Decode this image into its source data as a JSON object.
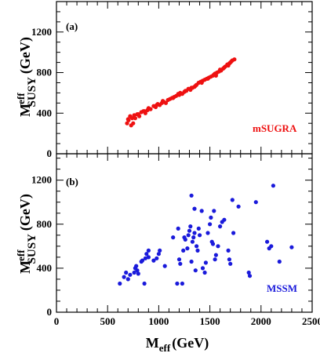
{
  "chart_data": {
    "type": "scatter",
    "xlabel": {
      "main": "M",
      "sub": "eff",
      "unit": "(GeV)"
    },
    "ylabel": {
      "main": "M",
      "sup": "eff",
      "sub": "SUSY",
      "unit": "(GeV)"
    },
    "xlim": [
      0,
      2500
    ],
    "x_ticks": [
      0,
      500,
      1000,
      1500,
      2000,
      2500
    ],
    "x_minor_step": 100,
    "grid": false,
    "panels": [
      {
        "label": "(a)",
        "series_name": "mSUGRA",
        "color": "#ee1111",
        "ylim": [
          0,
          1500
        ],
        "y_ticks": [
          0,
          400,
          800,
          1200
        ],
        "y_minor_step": 100,
        "points": [
          [
            690,
            300
          ],
          [
            700,
            340
          ],
          [
            705,
            330
          ],
          [
            720,
            370
          ],
          [
            730,
            280
          ],
          [
            740,
            350
          ],
          [
            750,
            300
          ],
          [
            760,
            380
          ],
          [
            770,
            350
          ],
          [
            790,
            390
          ],
          [
            810,
            370
          ],
          [
            830,
            410
          ],
          [
            850,
            420
          ],
          [
            870,
            400
          ],
          [
            890,
            430
          ],
          [
            900,
            450
          ],
          [
            920,
            440
          ],
          [
            950,
            470
          ],
          [
            970,
            460
          ],
          [
            990,
            490
          ],
          [
            1010,
            480
          ],
          [
            1030,
            500
          ],
          [
            1050,
            510
          ],
          [
            1070,
            500
          ],
          [
            1090,
            530
          ],
          [
            1110,
            540
          ],
          [
            1130,
            550
          ],
          [
            1150,
            560
          ],
          [
            1170,
            570
          ],
          [
            1190,
            590
          ],
          [
            1210,
            600
          ],
          [
            1230,
            590
          ],
          [
            1250,
            610
          ],
          [
            1270,
            620
          ],
          [
            1290,
            640
          ],
          [
            1310,
            630
          ],
          [
            1330,
            650
          ],
          [
            1350,
            660
          ],
          [
            1370,
            680
          ],
          [
            1390,
            700
          ],
          [
            1410,
            710
          ],
          [
            1430,
            720
          ],
          [
            1450,
            730
          ],
          [
            1470,
            740
          ],
          [
            1490,
            750
          ],
          [
            1510,
            760
          ],
          [
            1530,
            770
          ],
          [
            1550,
            790
          ],
          [
            1570,
            800
          ],
          [
            1590,
            810
          ],
          [
            1610,
            820
          ],
          [
            1630,
            840
          ],
          [
            1650,
            860
          ],
          [
            1670,
            880
          ],
          [
            1690,
            890
          ],
          [
            1700,
            900
          ],
          [
            1720,
            920
          ],
          [
            1740,
            930
          ],
          [
            1600,
            830
          ],
          [
            1560,
            770
          ],
          [
            1640,
            850
          ],
          [
            1680,
            870
          ],
          [
            1710,
            910
          ],
          [
            1360,
            670
          ],
          [
            1420,
            700
          ],
          [
            1480,
            740
          ],
          [
            1200,
            580
          ],
          [
            1140,
            550
          ],
          [
            980,
            480
          ],
          [
            860,
            420
          ],
          [
            800,
            390
          ],
          [
            1040,
            520
          ],
          [
            1260,
            620
          ],
          [
            1320,
            650
          ],
          [
            1540,
            780
          ]
        ]
      },
      {
        "label": "(b)",
        "series_name": "MSSM",
        "color": "#1a1adb",
        "ylim": [
          0,
          1440
        ],
        "y_ticks": [
          0,
          400,
          800,
          1200
        ],
        "y_minor_step": 100,
        "points": [
          [
            620,
            260
          ],
          [
            660,
            320
          ],
          [
            680,
            360
          ],
          [
            700,
            300
          ],
          [
            720,
            340
          ],
          [
            760,
            360
          ],
          [
            770,
            400
          ],
          [
            780,
            420
          ],
          [
            790,
            380
          ],
          [
            800,
            350
          ],
          [
            830,
            460
          ],
          [
            840,
            470
          ],
          [
            860,
            260
          ],
          [
            870,
            490
          ],
          [
            880,
            530
          ],
          [
            900,
            560
          ],
          [
            900,
            500
          ],
          [
            950,
            470
          ],
          [
            980,
            490
          ],
          [
            1000,
            530
          ],
          [
            1010,
            560
          ],
          [
            1060,
            420
          ],
          [
            1140,
            680
          ],
          [
            1180,
            260
          ],
          [
            1190,
            760
          ],
          [
            1200,
            480
          ],
          [
            1210,
            440
          ],
          [
            1230,
            260
          ],
          [
            1240,
            560
          ],
          [
            1250,
            680
          ],
          [
            1260,
            660
          ],
          [
            1280,
            580
          ],
          [
            1290,
            700
          ],
          [
            1300,
            740
          ],
          [
            1310,
            780
          ],
          [
            1320,
            460
          ],
          [
            1320,
            1060
          ],
          [
            1330,
            640
          ],
          [
            1340,
            680
          ],
          [
            1350,
            720
          ],
          [
            1360,
            380
          ],
          [
            1370,
            600
          ],
          [
            1380,
            560
          ],
          [
            1390,
            760
          ],
          [
            1400,
            700
          ],
          [
            1420,
            920
          ],
          [
            1430,
            400
          ],
          [
            1450,
            360
          ],
          [
            1460,
            450
          ],
          [
            1480,
            720
          ],
          [
            1500,
            800
          ],
          [
            1510,
            860
          ],
          [
            1520,
            640
          ],
          [
            1530,
            620
          ],
          [
            1540,
            920
          ],
          [
            1550,
            480
          ],
          [
            1560,
            520
          ],
          [
            1580,
            600
          ],
          [
            1600,
            780
          ],
          [
            1620,
            820
          ],
          [
            1640,
            840
          ],
          [
            1680,
            560
          ],
          [
            1690,
            480
          ],
          [
            1720,
            1020
          ],
          [
            1730,
            720
          ],
          [
            1780,
            960
          ],
          [
            1880,
            360
          ],
          [
            1890,
            330
          ],
          [
            1950,
            1000
          ],
          [
            2060,
            640
          ],
          [
            2080,
            580
          ],
          [
            2100,
            600
          ],
          [
            2120,
            1150
          ],
          [
            2180,
            460
          ],
          [
            2300,
            590
          ],
          [
            1700,
            440
          ],
          [
            1350,
            940
          ]
        ]
      }
    ]
  }
}
